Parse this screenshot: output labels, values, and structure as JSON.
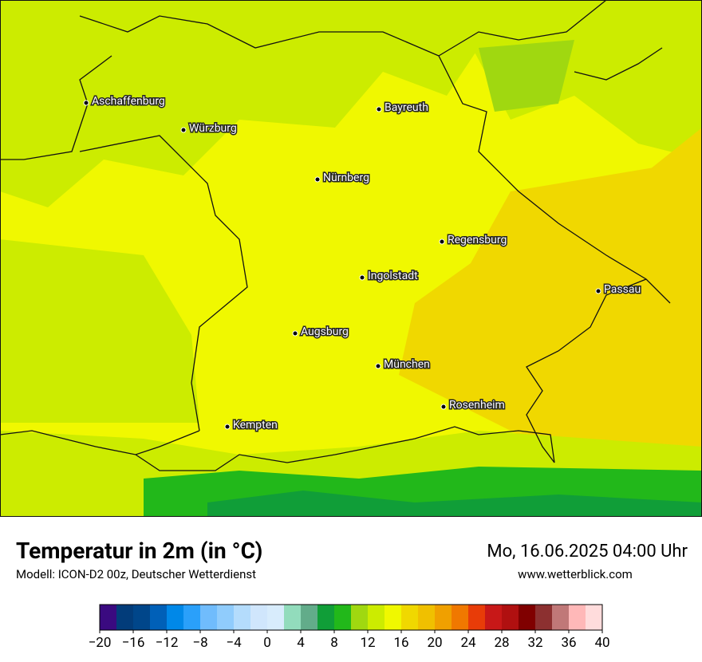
{
  "map": {
    "cities": [
      "Aschaffenburg",
      "Würzburg",
      "Bayreuth",
      "Nürnberg",
      "Regensburg",
      "Ingolstadt",
      "Passau",
      "Augsburg",
      "München",
      "Rosenheim",
      "Kempten"
    ]
  },
  "footer": {
    "title": "Temperatur in 2m (in °C)",
    "subtitle": "Modell: ICON-D2 00z, Deutscher Wetterdienst",
    "datetime": "Mo, 16.06.2025 04:00 Uhr",
    "website": "www.wetterblick.com"
  },
  "colorbar": {
    "range": [
      -20,
      40
    ],
    "colors": [
      "#3a0a80",
      "#023c7a",
      "#00468a",
      "#0060b8",
      "#0088e8",
      "#2aa0fa",
      "#70bcfc",
      "#90ccfc",
      "#b4dcfc",
      "#d0e6fc",
      "#d8ecfc",
      "#92dcbc",
      "#62ac8a",
      "#109e38",
      "#22b81a",
      "#a0d810",
      "#ccec00",
      "#f0f800",
      "#f0d800",
      "#f0c000",
      "#f0a000",
      "#f07800",
      "#e83c08",
      "#c81818",
      "#b01010",
      "#800000",
      "#8c3030",
      "#c07878",
      "#ffb8b8",
      "#ffdcdc"
    ],
    "ticks": [
      {
        "value": -20,
        "label": "−20"
      },
      {
        "value": -16,
        "label": "−16"
      },
      {
        "value": -12,
        "label": "−12"
      },
      {
        "value": -8,
        "label": "−8"
      },
      {
        "value": -4,
        "label": "−4"
      },
      0,
      4,
      8,
      12,
      16,
      20,
      24,
      28,
      32,
      36,
      40
    ]
  }
}
